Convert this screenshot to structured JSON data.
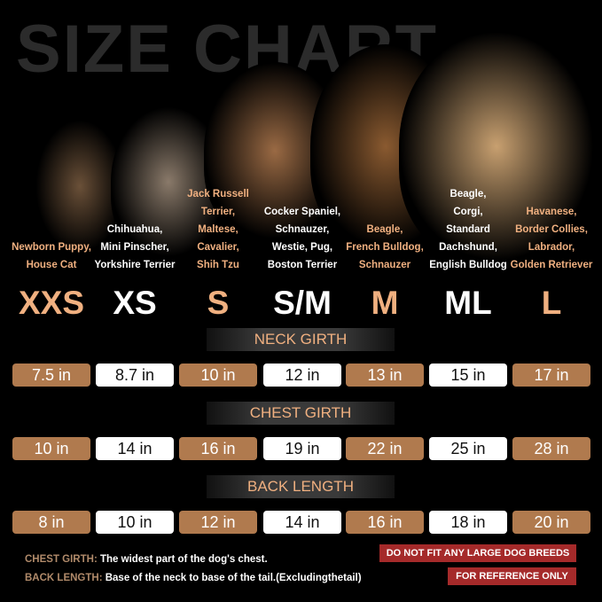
{
  "title": "SIZE CHART",
  "sizes": [
    {
      "label": "XXS",
      "breeds": [
        "Newborn Puppy,",
        "House Cat"
      ],
      "color": "tan"
    },
    {
      "label": "XS",
      "breeds": [
        "Chihuahua,",
        "Mini Pinscher,",
        "Yorkshire Terrier"
      ],
      "color": "white"
    },
    {
      "label": "S",
      "breeds": [
        "Jack Russell Terrier,",
        "Maltese,",
        "Cavalier,",
        "Shih Tzu"
      ],
      "color": "tan"
    },
    {
      "label": "S/M",
      "breeds": [
        "Cocker Spaniel,",
        "Schnauzer,",
        "Westie, Pug,",
        "Boston Terrier"
      ],
      "color": "white"
    },
    {
      "label": "M",
      "breeds": [
        "Beagle,",
        "French Bulldog,",
        "Schnauzer"
      ],
      "color": "tan"
    },
    {
      "label": "ML",
      "breeds": [
        "Beagle,",
        "Corgi,",
        "Standard Dachshund,",
        "English Bulldog"
      ],
      "color": "white"
    },
    {
      "label": "L",
      "breeds": [
        "Havanese,",
        "Border Collies,",
        "Labrador,",
        "Golden Retriever"
      ],
      "color": "tan"
    }
  ],
  "measurements": [
    {
      "name": "NECK GIRTH",
      "values": [
        "7.5 in",
        "8.7 in",
        "10 in",
        "12 in",
        "13 in",
        "15 in",
        "17 in"
      ]
    },
    {
      "name": "CHEST GIRTH",
      "values": [
        "10 in",
        "14 in",
        "16 in",
        "19 in",
        "22 in",
        "25 in",
        "28 in"
      ]
    },
    {
      "name": "BACK LENGTH",
      "values": [
        "8 in",
        "10 in",
        "12 in",
        "14 in",
        "16 in",
        "18 in",
        "20 in"
      ]
    }
  ],
  "notes": [
    {
      "key": "CHEST GIRTH:",
      "text": "The widest part of the dog's chest."
    },
    {
      "key": "BACK LENGTH:",
      "text": "Base of the neck to base of the tail.(Excludingthetail)"
    }
  ],
  "warnings": [
    "DO NOT FIT ANY LARGE DOG BREEDS",
    "FOR REFERENCE ONLY"
  ],
  "colors": {
    "tan": "#b07a4e",
    "accent_text": "#f0b080",
    "warning": "#a52a2a"
  }
}
